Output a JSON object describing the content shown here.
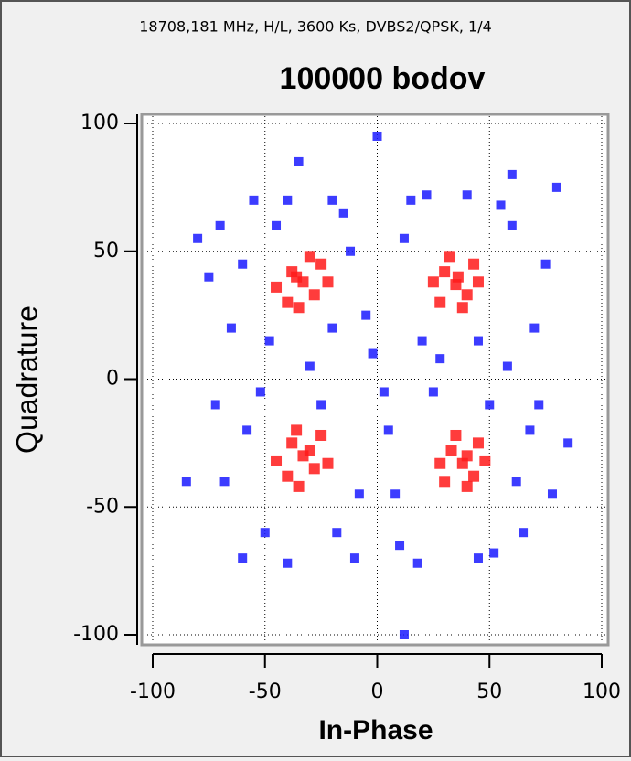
{
  "chart_data": {
    "type": "scatter",
    "subtitle": "18708,181 MHz, H/L, 3600 Ks, DVBS2/QPSK, 1/4",
    "title": "100000 bodov",
    "x_label": "In-Phase",
    "y_label": "Quadrature",
    "xlim": [
      -100,
      100
    ],
    "ylim": [
      -100,
      100
    ],
    "xticks": [
      -100,
      -50,
      0,
      50,
      100
    ],
    "yticks": [
      -100,
      -50,
      0,
      50,
      100
    ],
    "grid": true,
    "series": [
      {
        "color": "#1a1aff",
        "x": [
          -70,
          -60,
          -65,
          -72,
          -55,
          -50,
          -45,
          -60,
          -68,
          -58,
          -15,
          -10,
          -20,
          -25,
          -12,
          -8,
          -18,
          -20,
          -5,
          -30,
          15,
          10,
          20,
          25,
          12,
          8,
          18,
          22,
          5,
          28,
          55,
          65,
          70,
          72,
          60,
          52,
          75,
          62,
          68,
          58,
          -48,
          -52,
          50,
          45,
          -40,
          40,
          -40,
          45,
          -75,
          78,
          0,
          -85,
          85,
          12,
          -35,
          60,
          -80,
          80,
          -2,
          3
        ],
        "y": [
          60,
          -70,
          20,
          -10,
          70,
          -60,
          60,
          45,
          -40,
          -20,
          65,
          -70,
          20,
          -10,
          50,
          -45,
          -60,
          70,
          25,
          5,
          70,
          -65,
          15,
          -5,
          55,
          -45,
          -72,
          72,
          -20,
          8,
          68,
          -60,
          20,
          -10,
          60,
          -68,
          45,
          -40,
          -20,
          5,
          15,
          -5,
          -10,
          15,
          70,
          72,
          -72,
          -70,
          40,
          -45,
          95,
          -40,
          -25,
          -100,
          85,
          80,
          55,
          75,
          10,
          -5
        ]
      },
      {
        "color": "#ff1a1a",
        "x": [
          35,
          30,
          40,
          28,
          43,
          38,
          32,
          45,
          25,
          36,
          -33,
          -38,
          -28,
          -40,
          -25,
          -35,
          -30,
          -45,
          -22,
          -36,
          -33,
          -38,
          -28,
          -40,
          -25,
          -35,
          -30,
          -45,
          -22,
          -36,
          38,
          33,
          43,
          30,
          45,
          40,
          35,
          48,
          28,
          40
        ],
        "y": [
          37,
          42,
          33,
          30,
          45,
          28,
          48,
          38,
          38,
          40,
          38,
          42,
          33,
          30,
          45,
          28,
          48,
          36,
          38,
          40,
          -30,
          -25,
          -35,
          -38,
          -22,
          -42,
          -28,
          -32,
          -33,
          -20,
          -33,
          -28,
          -38,
          -40,
          -25,
          -42,
          -22,
          -32,
          -33,
          -30
        ]
      }
    ]
  }
}
